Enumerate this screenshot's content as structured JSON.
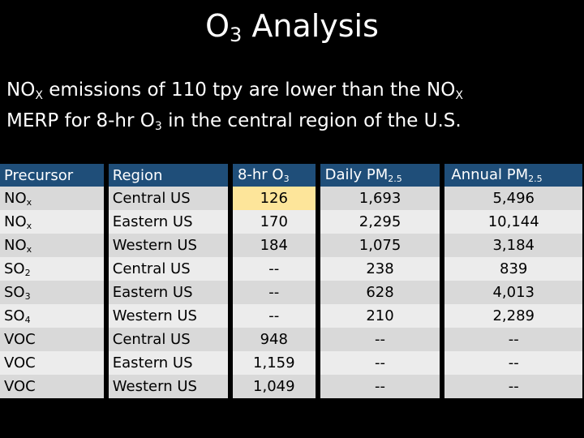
{
  "title": {
    "main": "O",
    "sub": "3",
    "rest": " Analysis"
  },
  "paragraph": {
    "l1_a": "NO",
    "l1_b": "X",
    "l1_c": " emissions of 110 tpy are lower than the NO",
    "l1_d": "X",
    "l2_a": "MERP for 8-hr O",
    "l2_b": "3",
    "l2_c": " in the central region of the U.S."
  },
  "table": {
    "headers": {
      "precursor": "Precursor",
      "region": "Region",
      "o3_main": "8-hr O",
      "o3_sub": "3",
      "daily_main": "Daily PM",
      "daily_sub": "2.5",
      "annual_main": "Annual PM",
      "annual_sub": "2.5"
    },
    "rows": [
      {
        "pre_main": "NO",
        "pre_sub": "x",
        "region": "Central US",
        "o3": "126",
        "daily": "1,693",
        "annual": "5,496"
      },
      {
        "pre_main": "NO",
        "pre_sub": "x",
        "region": "Eastern US",
        "o3": "170",
        "daily": "2,295",
        "annual": "10,144"
      },
      {
        "pre_main": "NO",
        "pre_sub": "x",
        "region": "Western US",
        "o3": "184",
        "daily": "1,075",
        "annual": "3,184"
      },
      {
        "pre_main": "SO",
        "pre_sub": "2",
        "region": "Central US",
        "o3": "--",
        "daily": "238",
        "annual": "839"
      },
      {
        "pre_main": "SO",
        "pre_sub": "3",
        "region": "Eastern US",
        "o3": "--",
        "daily": "628",
        "annual": "4,013"
      },
      {
        "pre_main": "SO",
        "pre_sub": "4",
        "region": "Western US",
        "o3": "--",
        "daily": "210",
        "annual": "2,289"
      },
      {
        "pre_main": "VOC",
        "pre_sub": "",
        "region": "Central US",
        "o3": "948",
        "daily": "--",
        "annual": "--"
      },
      {
        "pre_main": "VOC",
        "pre_sub": "",
        "region": "Eastern US",
        "o3": "1,159",
        "daily": "--",
        "annual": "--"
      },
      {
        "pre_main": "VOC",
        "pre_sub": "",
        "region": "Western US",
        "o3": "1,049",
        "daily": "--",
        "annual": "--"
      }
    ],
    "highlight_color": "#fde59a",
    "header_color": "#1f4e79"
  }
}
